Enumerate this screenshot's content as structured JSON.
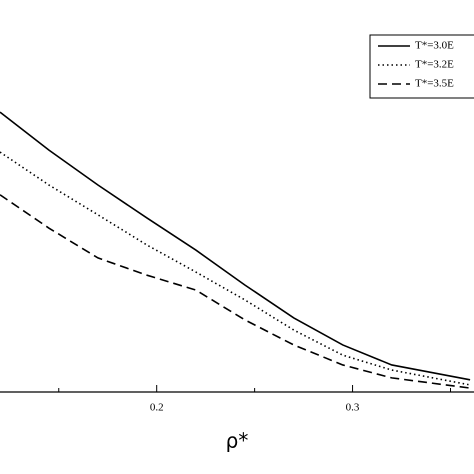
{
  "chart_data": {
    "type": "line",
    "xlabel": "ρ*",
    "x": [
      0.12,
      0.145,
      0.17,
      0.195,
      0.22,
      0.245,
      0.27,
      0.295,
      0.32,
      0.36
    ],
    "series": [
      {
        "name": "T*=3.0E",
        "color": "#000000",
        "dash": "solid",
        "values": [
          7.14,
          6.17,
          5.28,
          4.44,
          3.62,
          2.73,
          1.89,
          1.2,
          0.69,
          0.31
        ]
      },
      {
        "name": "T*=3.2E",
        "color": "#000000",
        "dash": "dotted",
        "values": [
          6.12,
          5.28,
          4.52,
          3.75,
          3.06,
          2.35,
          1.58,
          0.94,
          0.56,
          0.18
        ]
      },
      {
        "name": "T*=3.5E",
        "color": "#000000",
        "dash": "dashed",
        "values": [
          5.03,
          4.18,
          3.42,
          2.98,
          2.6,
          1.84,
          1.2,
          0.69,
          0.36,
          0.1
        ]
      }
    ],
    "xlim": [
      0.12,
      0.362
    ],
    "xticks": [
      0.2,
      0.3
    ],
    "xminorticks": [
      0.15,
      0.25,
      0.35
    ],
    "ylim": [
      0,
      10
    ],
    "legend": "upper right"
  }
}
